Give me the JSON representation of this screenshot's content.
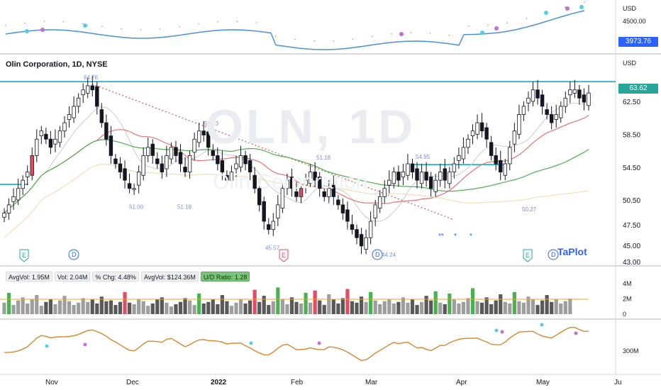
{
  "header": {
    "symbol_title": "Olin Corporation, 1D, NYSE",
    "currency_top": "USD",
    "currency_main": "USD"
  },
  "top_pane": {
    "axis_labels": [
      "4500.00"
    ],
    "last_value": "3973.76",
    "last_value_color": "#2962ff"
  },
  "main_pane": {
    "axis_labels": [
      "62.50",
      "58.50",
      "54.50",
      "50.50",
      "47.50",
      "45.00",
      "43.00"
    ],
    "last_price": "63.62",
    "last_price_color": "#26a69a",
    "resistance_color": "#00a6c7",
    "annotations": [
      "64.76",
      "51.00",
      "51.18",
      "59.13",
      "51.18",
      "45.57",
      "44.24",
      "54.95",
      "50.27"
    ],
    "earnings_marker": "E",
    "dividend_marker": "D",
    "asterisks": [
      "**",
      "*",
      "*"
    ]
  },
  "volume_pane": {
    "stats": [
      {
        "label": "AvgVol: 1.95M"
      },
      {
        "label": "Vol: 2.04M"
      },
      {
        "label": "% Chg: 4.48%"
      },
      {
        "label": "AvgVol: $124.36M"
      },
      {
        "label": "U/D Ratio: 1.28",
        "highlight": true
      }
    ],
    "axis_labels": [
      "4M",
      "2M",
      "0"
    ]
  },
  "bottom_pane": {
    "axis_label": "300M"
  },
  "time_axis": {
    "labels": [
      "Nov",
      "Dec",
      "2022",
      "Feb",
      "Mar",
      "Apr",
      "May",
      "Ju"
    ]
  },
  "branding": {
    "logo_text": "TaPlot"
  },
  "watermark": {
    "ticker": "OLN, 1D",
    "name": "Olin Corporation"
  },
  "chart_data": {
    "type": "candlestick",
    "title": "Olin Corporation, 1D, NYSE",
    "ylim": [
      43.0,
      67.0
    ],
    "x_labels": [
      "Nov",
      "Dec",
      "2022",
      "Feb",
      "Mar",
      "Apr",
      "May",
      "Ju"
    ],
    "y_ticks": [
      62.5,
      58.5,
      54.5,
      50.5,
      47.5,
      45.0,
      43.0
    ],
    "last_price": 63.62,
    "resistance_level": 65.0,
    "labeled_points": [
      {
        "label": "64.76",
        "value": 64.76
      },
      {
        "label": "51.00",
        "value": 51.0
      },
      {
        "label": "51.18",
        "value": 51.18
      },
      {
        "label": "59.13",
        "value": 59.13
      },
      {
        "label": "45.57",
        "value": 45.57
      },
      {
        "label": "44.24",
        "value": 44.24
      },
      {
        "label": "54.95",
        "value": 54.95
      },
      {
        "label": "50.27",
        "value": 50.27
      }
    ],
    "close_path": [
      49,
      50,
      51,
      52,
      53,
      54,
      56,
      58,
      59,
      58,
      57,
      58,
      59,
      60,
      61,
      62,
      63,
      64,
      64.5,
      64,
      62,
      60,
      58,
      56,
      55,
      54,
      53,
      52,
      52,
      54,
      56,
      57,
      56,
      55,
      54,
      56,
      57,
      56,
      55,
      54,
      56,
      58,
      59,
      58.5,
      57,
      56,
      55,
      54,
      53,
      54,
      55,
      56,
      55,
      54,
      52,
      50,
      48,
      47,
      48,
      50,
      52,
      53,
      52,
      51,
      52,
      53,
      54,
      53,
      52,
      51,
      52,
      51,
      50,
      49,
      48,
      47,
      46,
      45,
      46,
      48,
      50,
      51,
      52,
      53,
      54,
      53,
      54,
      55,
      54,
      53,
      54,
      53,
      52,
      53,
      54,
      53,
      54,
      55,
      56,
      57,
      58,
      59,
      60,
      59,
      58,
      56,
      55,
      54,
      55,
      57,
      59,
      61,
      62,
      63,
      64,
      63,
      62,
      61,
      60,
      61,
      62,
      63,
      64,
      64,
      63,
      62.5,
      63.62
    ],
    "volume": [
      1.5,
      2.8,
      1.2,
      1.8,
      2.2,
      1.4,
      1.9,
      2.5,
      1.1,
      1.6,
      2.0,
      1.3,
      1.8,
      2.4,
      1.7,
      1.2,
      1.5,
      2.1,
      1.6,
      1.9,
      1.4,
      2.3,
      1.7,
      1.8,
      1.2,
      1.6,
      2.9,
      1.5,
      1.3,
      2.0,
      1.7,
      1.1,
      1.4,
      1.9,
      2.2,
      1.5,
      1.0,
      1.3,
      1.6,
      2.1,
      1.8,
      1.2,
      2.7,
      1.4,
      1.6,
      1.9,
      1.3,
      2.5,
      1.7,
      1.1,
      1.5,
      2.0,
      1.4,
      1.8,
      3.2,
      1.6,
      2.4,
      1.2,
      1.7,
      3.5,
      1.9,
      1.3,
      2.2,
      1.6,
      1.4,
      2.8,
      1.5,
      3.1,
      1.8,
      1.2,
      2.6,
      1.9,
      1.4,
      2.1,
      3.3,
      1.7,
      1.5,
      2.3,
      1.6,
      2.9,
      1.8,
      1.3,
      1.7,
      2.0,
      1.4,
      1.6,
      2.2,
      1.5,
      1.9,
      1.2,
      1.6,
      2.4,
      1.8,
      3.0,
      1.5,
      1.3,
      2.7,
      1.9,
      1.4,
      1.6,
      2.1,
      3.4,
      1.7,
      1.5,
      2.2,
      1.3,
      1.8,
      2.6,
      1.6,
      1.4,
      2.9,
      1.7,
      1.5,
      2.3,
      1.9,
      1.2,
      1.8,
      2.5,
      1.6,
      2.0,
      1.4,
      1.7,
      2.04
    ],
    "volume_ylim": [
      0,
      4
    ],
    "volume_avg": 1.95
  }
}
